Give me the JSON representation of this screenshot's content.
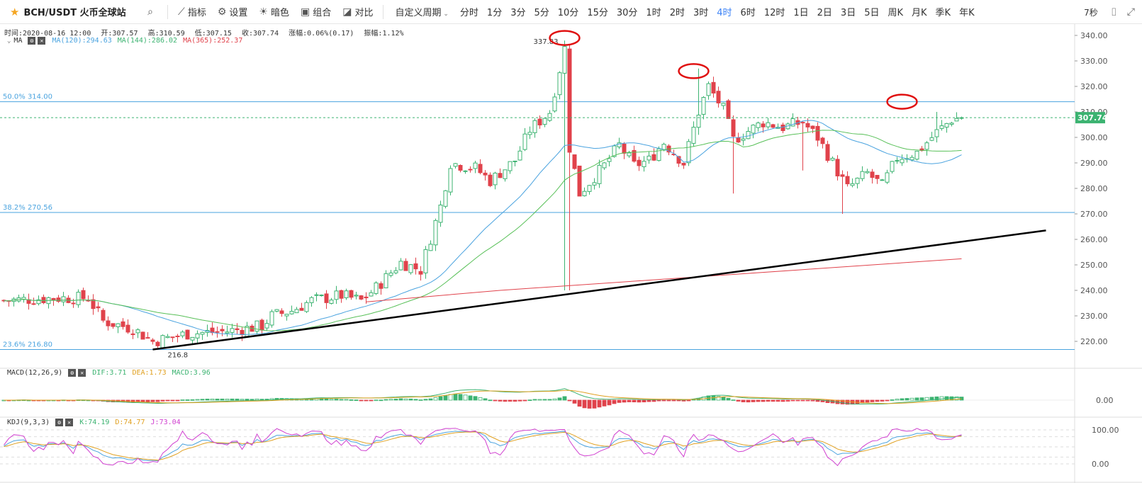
{
  "toolbar": {
    "symbol": "BCH/USDT 火币全球站",
    "indicator_label": "指标",
    "settings_label": "设置",
    "theme_label": "暗色",
    "combo_label": "组合",
    "compare_label": "对比",
    "custom_period_label": "自定义周期",
    "periods": [
      "分时",
      "1分",
      "3分",
      "5分",
      "10分",
      "15分",
      "30分",
      "1时",
      "2时",
      "3时",
      "4时",
      "6时",
      "12时",
      "1日",
      "2日",
      "3日",
      "5日",
      "周K",
      "月K",
      "季K",
      "年K"
    ],
    "active_period": "4时",
    "refresh_label": "7秒"
  },
  "ohlc": {
    "time": "时间:2020-08-16 12:00",
    "open": "开:307.57",
    "high": "高:310.59",
    "low": "低:307.15",
    "close": "收:307.74",
    "change": "涨幅:0.06%(0.17)",
    "amplitude": "振幅:1.12%"
  },
  "ma_legend": {
    "name": "MA",
    "ma120": "MA(120):294.63",
    "ma144": "MA(144):286.02",
    "ma365": "MA(365):252.37"
  },
  "macd_legend": {
    "name": "MACD(12,26,9)",
    "dif": "DIF:3.71",
    "dea": "DEA:1.73",
    "macd": "MACD:3.96"
  },
  "kdj_legend": {
    "name": "KDJ(9,3,3)",
    "k": "K:74.19",
    "d": "D:74.77",
    "j": "J:73.04"
  },
  "colors": {
    "up": "#3cb371",
    "down": "#e0424b",
    "ma120": "#4aa3df",
    "ma144": "#58c058",
    "ma365": "#e0424b",
    "fib": "#4aa3df",
    "trend": "#000000",
    "highlight": "#e01010",
    "k": "#4aa3df",
    "d": "#e0a020",
    "j": "#d040d0"
  },
  "chart_data": {
    "type": "candlestick",
    "price_axis": {
      "min": 213,
      "max": 343,
      "ticks": [
        340,
        330,
        320,
        310,
        300,
        290,
        280,
        270,
        260,
        250,
        240,
        230,
        220
      ],
      "current": 307.74,
      "current_label": "307.74"
    },
    "fib_levels": [
      {
        "label": "50.0% 314.00",
        "value": 314.0
      },
      {
        "label": "38.2% 270.56",
        "value": 270.56
      },
      {
        "label": "23.6% 216.80",
        "value": 216.8
      }
    ],
    "high_label": "337.83",
    "high_value": 337.83,
    "low_label": "216.8",
    "low_value": 216.8,
    "n_candles": 200,
    "close_anchors": [
      [
        0,
        236
      ],
      [
        10,
        237
      ],
      [
        17,
        237
      ],
      [
        20,
        228
      ],
      [
        26,
        225
      ],
      [
        30,
        220
      ],
      [
        37,
        223
      ],
      [
        45,
        224
      ],
      [
        52,
        226
      ],
      [
        54,
        230
      ],
      [
        58,
        232
      ],
      [
        62,
        236
      ],
      [
        68,
        238
      ],
      [
        72,
        236
      ],
      [
        75,
        241
      ],
      [
        80,
        251
      ],
      [
        84,
        248
      ],
      [
        88,
        273
      ],
      [
        90,
        290
      ],
      [
        95,
        288
      ],
      [
        98,
        283
      ],
      [
        103,
        291
      ],
      [
        106,
        303
      ],
      [
        110,
        310
      ],
      [
        113,
        335
      ],
      [
        114,
        296
      ],
      [
        116,
        278
      ],
      [
        121,
        289
      ],
      [
        124,
        297
      ],
      [
        127,
        289
      ],
      [
        130,
        291
      ],
      [
        133,
        298
      ],
      [
        137,
        290
      ],
      [
        140,
        310
      ],
      [
        142,
        320
      ],
      [
        145,
        311
      ],
      [
        147,
        299
      ],
      [
        153,
        306
      ],
      [
        157,
        304
      ],
      [
        161,
        306
      ],
      [
        164,
        300
      ],
      [
        167,
        290
      ],
      [
        170,
        280
      ],
      [
        174,
        286
      ],
      [
        177,
        281
      ],
      [
        180,
        292
      ],
      [
        184,
        294
      ],
      [
        188,
        302
      ],
      [
        191,
        307
      ],
      [
        193,
        307.74
      ]
    ],
    "wick_events": [
      [
        113,
        338,
        240
      ],
      [
        114,
        335,
        240
      ],
      [
        140,
        327,
        301
      ],
      [
        147,
        308,
        278
      ],
      [
        161,
        305,
        287
      ],
      [
        169,
        286,
        270
      ],
      [
        188,
        310,
        300
      ]
    ],
    "ma365_points": [
      [
        73,
        235.5
      ],
      [
        100,
        240
      ],
      [
        130,
        244
      ],
      [
        160,
        248
      ],
      [
        193,
        252.4
      ]
    ],
    "macd_axis": {
      "ticks": [
        "0.00"
      ]
    },
    "kdj_axis": {
      "ticks": [
        "100.00",
        "0.00"
      ]
    },
    "trendline": {
      "from": [
        30,
        216.8
      ],
      "to": [
        210,
        263.5
      ]
    },
    "highlight_markers": [
      [
        113,
        339
      ],
      [
        139,
        326
      ],
      [
        181,
        314
      ]
    ]
  }
}
